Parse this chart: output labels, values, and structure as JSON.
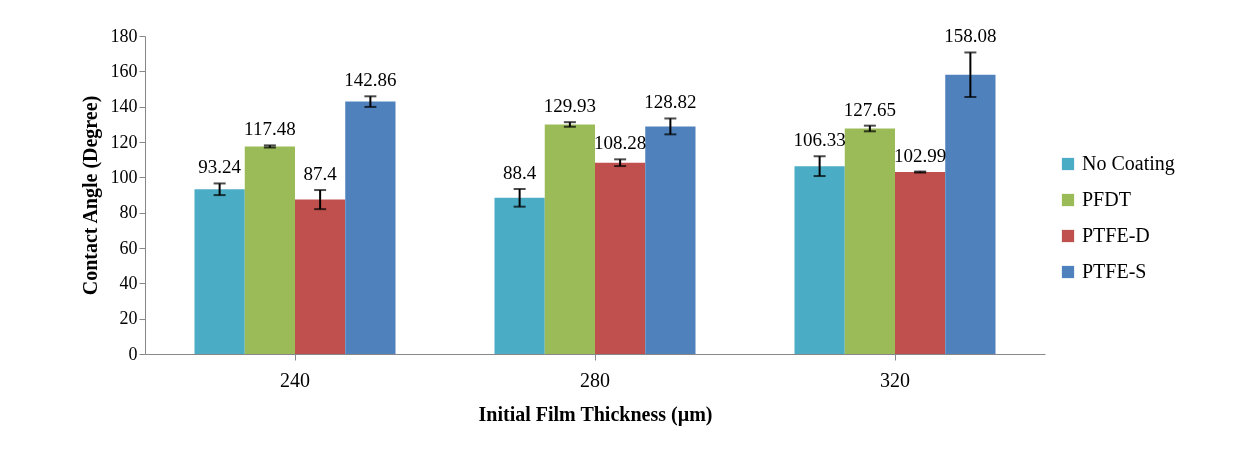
{
  "chart_data": {
    "type": "bar",
    "xlabel": "Initial Film Thickness (µm)",
    "ylabel": "Contact Angle (Degree)",
    "categories": [
      "240",
      "280",
      "320"
    ],
    "series": [
      {
        "name": "No Coating",
        "color": "#4bacc6",
        "values": [
          93.24,
          88.4,
          106.33
        ],
        "errors": [
          3.3,
          5,
          5.6
        ]
      },
      {
        "name": "PFDT",
        "color": "#9bbb59",
        "values": [
          117.48,
          129.93,
          127.65
        ],
        "errors": [
          0.6,
          1.3,
          1.6
        ]
      },
      {
        "name": "PTFE-D",
        "color": "#c0504d",
        "values": [
          87.4,
          108.28,
          102.99
        ],
        "errors": [
          5.4,
          1.9,
          0.3
        ]
      },
      {
        "name": "PTFE-S",
        "color": "#4f81bd",
        "values": [
          142.86,
          128.82,
          158.08
        ],
        "errors": [
          3,
          4.5,
          12.6
        ]
      }
    ],
    "ylim": [
      0,
      180
    ],
    "yticks": [
      0,
      20,
      40,
      60,
      80,
      100,
      120,
      140,
      160,
      180
    ],
    "grid": false,
    "legend": "right",
    "data_labels": true
  }
}
